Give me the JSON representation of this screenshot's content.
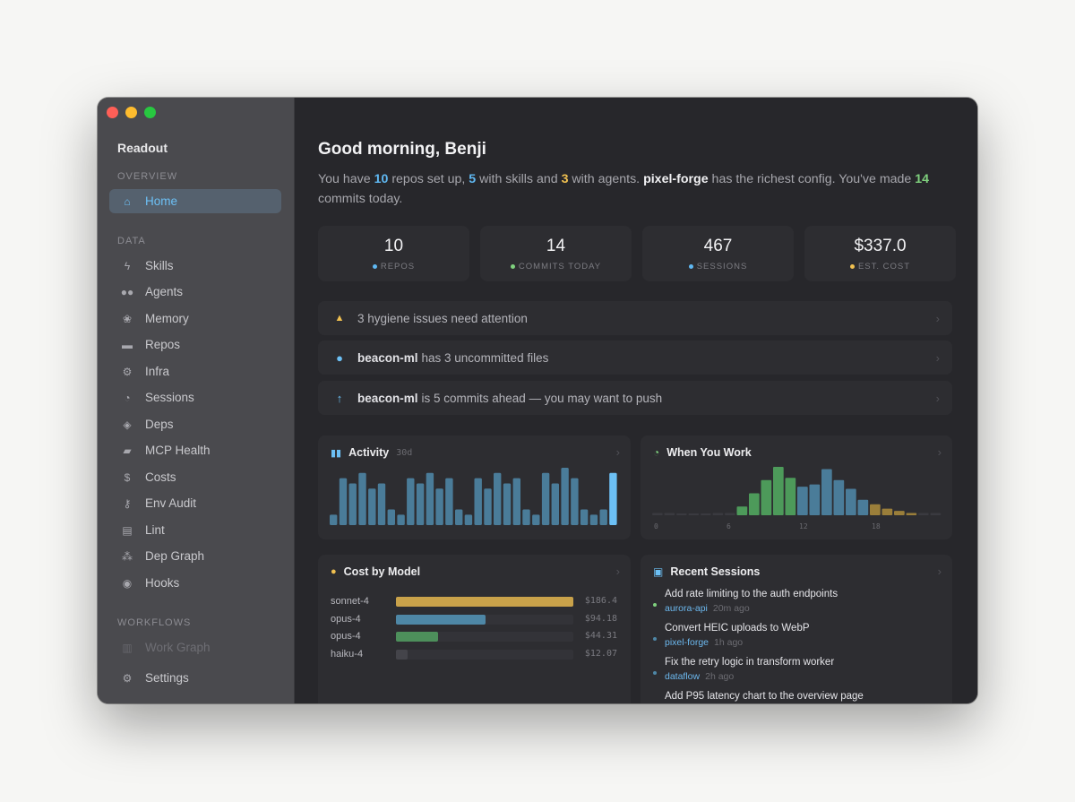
{
  "app": {
    "title": "Readout"
  },
  "sidebar": {
    "sections": [
      {
        "label": "OVERVIEW"
      },
      {
        "label": "DATA"
      },
      {
        "label": "WORKFLOWS"
      }
    ],
    "items": [
      {
        "label": "Home",
        "icon": "home-icon"
      },
      {
        "label": "Skills",
        "icon": "bolt-icon"
      },
      {
        "label": "Agents",
        "icon": "users-icon"
      },
      {
        "label": "Memory",
        "icon": "brain-icon"
      },
      {
        "label": "Repos",
        "icon": "folder-icon"
      },
      {
        "label": "Infra",
        "icon": "gears-icon"
      },
      {
        "label": "Sessions",
        "icon": "clock-icon"
      },
      {
        "label": "Deps",
        "icon": "box-icon"
      },
      {
        "label": "MCP Health",
        "icon": "server-icon"
      },
      {
        "label": "Costs",
        "icon": "dollar-icon"
      },
      {
        "label": "Env Audit",
        "icon": "key-icon"
      },
      {
        "label": "Lint",
        "icon": "file-icon"
      },
      {
        "label": "Dep Graph",
        "icon": "graph-icon"
      },
      {
        "label": "Hooks",
        "icon": "hook-icon"
      },
      {
        "label": "Work Graph",
        "icon": "chart-icon"
      },
      {
        "label": "Settings",
        "icon": "gear-icon"
      }
    ]
  },
  "main": {
    "greeting": "Good morning, Benji",
    "summary": {
      "p1": "You have ",
      "repos": "10",
      "p2": " repos set up, ",
      "skills": "5",
      "p3": " with skills and ",
      "agents": "3",
      "p4": " with agents. ",
      "richest": "pixel-forge",
      "p5": " has the richest config. You've made ",
      "commits": "14",
      "p6": " commits today."
    },
    "stats": [
      {
        "value": "10",
        "label": "REPOS",
        "color": "#5fb8f2"
      },
      {
        "value": "14",
        "label": "COMMITS TODAY",
        "color": "#7fd17e"
      },
      {
        "value": "467",
        "label": "SESSIONS",
        "color": "#5fb8f2"
      },
      {
        "value": "$337.0",
        "label": "EST. COST",
        "color": "#f0c050"
      }
    ],
    "alerts": [
      {
        "name": "",
        "text": "3 hygiene issues need attention",
        "icon": "warning-icon"
      },
      {
        "name": "beacon-ml",
        "text": "has 3 uncommitted files",
        "icon": "dot-icon"
      },
      {
        "name": "beacon-ml",
        "text": "is 5 commits ahead — you may want to push",
        "icon": "arrow-up-icon"
      }
    ],
    "activity": {
      "title": "Activity",
      "range": "30d"
    },
    "when_you_work": {
      "title": "When You Work"
    },
    "cost_by_model": {
      "title": "Cost by Model",
      "rows": [
        {
          "model": "sonnet-4",
          "cost": "$186.4",
          "value": 186.4,
          "color": "#c9a24a"
        },
        {
          "model": "opus-4",
          "cost": "$94.18",
          "value": 94.18,
          "color": "#4e87a6"
        },
        {
          "model": "opus-4",
          "cost": "$44.31",
          "value": 44.31,
          "color": "#4d8f5b"
        },
        {
          "model": "haiku-4",
          "cost": "$12.07",
          "value": 12.07,
          "color": "#44444a"
        }
      ]
    },
    "recent_sessions": {
      "title": "Recent Sessions",
      "items": [
        {
          "title": "Add rate limiting to the auth endpoints",
          "repo": "aurora-api",
          "ago": "20m ago",
          "dot": "#7fd17e"
        },
        {
          "title": "Convert HEIC uploads to WebP",
          "repo": "pixel-forge",
          "ago": "1h ago",
          "dot": "#4e87a6"
        },
        {
          "title": "Fix the retry logic in transform worker",
          "repo": "dataflow",
          "ago": "2h ago",
          "dot": "#4e87a6"
        },
        {
          "title": "Add P95 latency chart to the overview page",
          "repo": "",
          "ago": "",
          "dot": "#4e87a6"
        }
      ]
    }
  },
  "chart_data": [
    {
      "type": "bar",
      "title": "Activity",
      "subtitle": "30d",
      "x": [
        1,
        2,
        3,
        4,
        5,
        6,
        7,
        8,
        9,
        10,
        11,
        12,
        13,
        14,
        15,
        16,
        17,
        18,
        19,
        20,
        21,
        22,
        23,
        24,
        25,
        26,
        27,
        28,
        29,
        30
      ],
      "values": [
        2,
        9,
        8,
        10,
        7,
        8,
        3,
        2,
        9,
        8,
        10,
        7,
        9,
        3,
        2,
        9,
        7,
        10,
        8,
        9,
        3,
        2,
        10,
        8,
        11,
        9,
        3,
        2,
        3,
        10
      ],
      "ylim": [
        0,
        11
      ]
    },
    {
      "type": "bar",
      "title": "When You Work",
      "categories": [
        "0",
        "1",
        "2",
        "3",
        "4",
        "5",
        "6",
        "7",
        "8",
        "9",
        "10",
        "11",
        "12",
        "13",
        "14",
        "15",
        "16",
        "17",
        "18",
        "19",
        "20",
        "21",
        "22",
        "23"
      ],
      "tick_labels": [
        "0",
        "6",
        "12",
        "18"
      ],
      "values": [
        1,
        1,
        0.5,
        0.5,
        0.5,
        1,
        1,
        4,
        10,
        16,
        22,
        17,
        13,
        14,
        21,
        16,
        12,
        7,
        5,
        3,
        2,
        1,
        1,
        1
      ],
      "ylim": [
        0,
        22
      ]
    }
  ]
}
